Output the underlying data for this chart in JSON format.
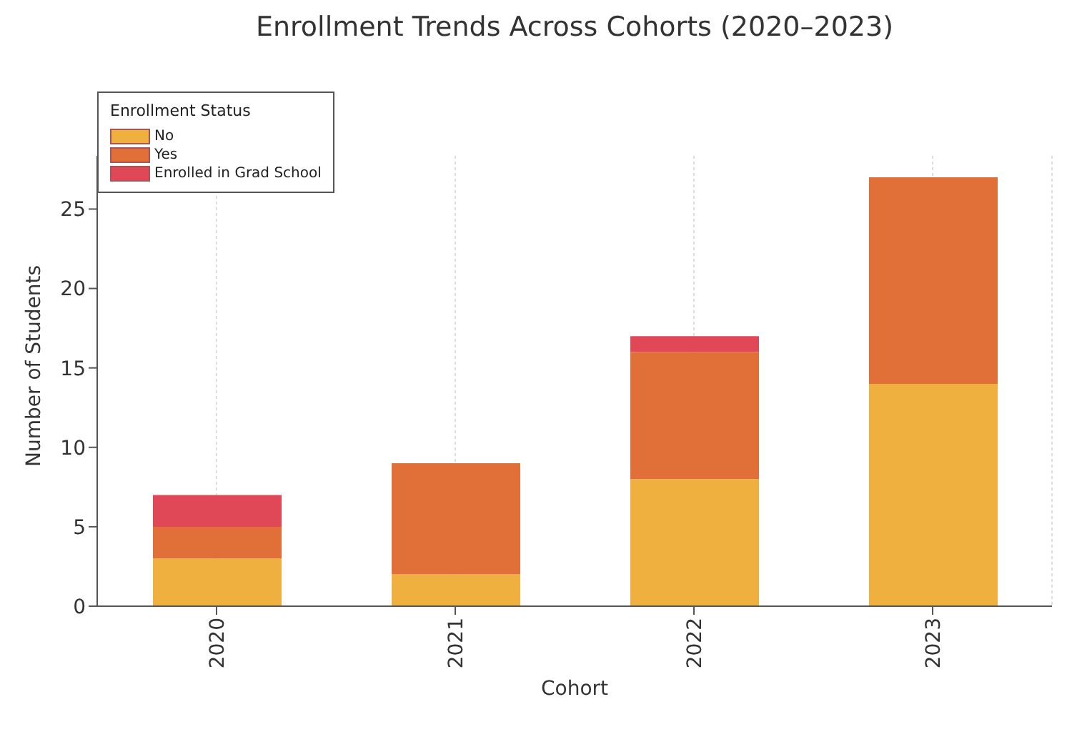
{
  "chart_data": {
    "type": "bar",
    "title": "Enrollment Trends Across Cohorts (2020–2023)",
    "xlabel": "Cohort",
    "ylabel": "Number of Students",
    "legend_title": "Enrollment Status",
    "categories": [
      "2020",
      "2021",
      "2022",
      "2023"
    ],
    "series": [
      {
        "name": "No",
        "color": "#f0b040",
        "values": [
          3,
          2,
          8,
          14
        ]
      },
      {
        "name": "Yes",
        "color": "#e07038",
        "values": [
          2,
          7,
          8,
          13
        ]
      },
      {
        "name": "Enrolled in Grad School",
        "color": "#e04858",
        "values": [
          2,
          0,
          1,
          0
        ]
      }
    ],
    "stacked": true,
    "ylim": [
      0,
      28.35
    ],
    "yticks": [
      0,
      5,
      10,
      15,
      20,
      25
    ],
    "grid": "x",
    "legend": "top left"
  }
}
